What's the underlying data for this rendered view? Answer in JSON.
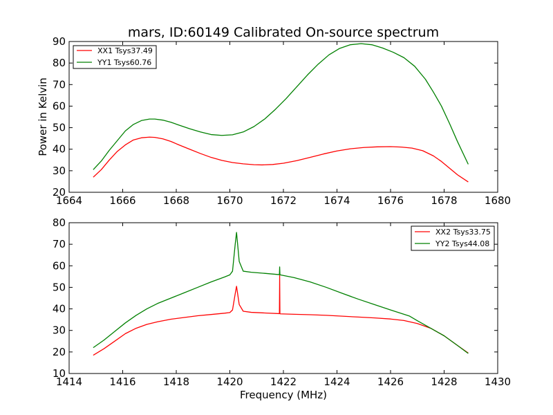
{
  "figure": {
    "title": "mars, ID:60149 Calibrated On-source spectrum"
  },
  "chart_data": [
    {
      "type": "line",
      "title": "mars, ID:60149 Calibrated On-source spectrum",
      "xlabel": "",
      "ylabel": "Power in Kelvin",
      "xlim": [
        1664,
        1680
      ],
      "ylim": [
        20,
        90
      ],
      "xticks": [
        1664,
        1666,
        1668,
        1670,
        1672,
        1674,
        1676,
        1678,
        1680
      ],
      "yticks": [
        20,
        30,
        40,
        50,
        60,
        70,
        80,
        90
      ],
      "xtick_labels": [
        "1664",
        "1666",
        "1668",
        "1670",
        "1672",
        "1674",
        "1676",
        "1678",
        "1680"
      ],
      "ytick_labels": [
        "20",
        "30",
        "40",
        "50",
        "60",
        "70",
        "80",
        "90"
      ],
      "grid": false,
      "legend": "top-left",
      "series": [
        {
          "name": "XX1 Tsys37.49",
          "color": "#ff0000",
          "x": [
            1664.9,
            1665.2,
            1665.5,
            1665.8,
            1666.1,
            1666.4,
            1666.7,
            1667.0,
            1667.2,
            1667.5,
            1667.8,
            1668.1,
            1668.5,
            1668.9,
            1669.3,
            1669.7,
            1670.1,
            1670.5,
            1670.9,
            1671.2,
            1671.6,
            1672.0,
            1672.5,
            1673.0,
            1673.5,
            1674.0,
            1674.5,
            1675.0,
            1675.5,
            1676.0,
            1676.4,
            1676.8,
            1677.2,
            1677.6,
            1677.9,
            1678.2,
            1678.5,
            1678.9
          ],
          "y": [
            27.0,
            30.5,
            35.0,
            39.0,
            42.0,
            44.3,
            45.3,
            45.6,
            45.5,
            44.8,
            43.6,
            42.0,
            40.0,
            38.0,
            36.2,
            34.8,
            33.8,
            33.2,
            32.8,
            32.7,
            32.9,
            33.5,
            34.7,
            36.2,
            37.8,
            39.2,
            40.2,
            40.8,
            41.1,
            41.2,
            41.0,
            40.5,
            39.3,
            36.9,
            34.3,
            31.2,
            28.1,
            24.8
          ]
        },
        {
          "name": "YY1 Tsys60.76",
          "color": "#008000",
          "x": [
            1664.9,
            1665.2,
            1665.5,
            1665.8,
            1666.1,
            1666.4,
            1666.7,
            1667.0,
            1667.2,
            1667.5,
            1667.8,
            1668.1,
            1668.5,
            1668.9,
            1669.3,
            1669.7,
            1670.1,
            1670.5,
            1670.9,
            1671.3,
            1671.7,
            1672.1,
            1672.5,
            1672.9,
            1673.3,
            1673.7,
            1674.1,
            1674.5,
            1674.9,
            1675.3,
            1675.7,
            1676.1,
            1676.5,
            1676.9,
            1677.3,
            1677.6,
            1677.9,
            1678.2,
            1678.5,
            1678.9
          ],
          "y": [
            30.5,
            34.5,
            39.5,
            44.0,
            48.5,
            51.5,
            53.3,
            54.0,
            54.0,
            53.5,
            52.5,
            51.2,
            49.5,
            48.0,
            46.8,
            46.4,
            46.7,
            48.0,
            50.5,
            54.0,
            58.5,
            63.5,
            69.0,
            74.5,
            79.5,
            83.8,
            86.8,
            88.5,
            89.0,
            88.5,
            87.0,
            85.0,
            82.5,
            78.5,
            72.5,
            66.5,
            60.0,
            52.0,
            43.5,
            33.0
          ]
        }
      ]
    },
    {
      "type": "line",
      "title": "",
      "xlabel": "Frequency (MHz)",
      "ylabel": "",
      "xlim": [
        1414,
        1430
      ],
      "ylim": [
        10,
        80
      ],
      "xticks": [
        1414,
        1416,
        1418,
        1420,
        1422,
        1424,
        1426,
        1428,
        1430
      ],
      "yticks": [
        10,
        20,
        30,
        40,
        50,
        60,
        70,
        80
      ],
      "xtick_labels": [
        "1414",
        "1416",
        "1418",
        "1420",
        "1422",
        "1424",
        "1426",
        "1428",
        "1430"
      ],
      "ytick_labels": [
        "10",
        "20",
        "30",
        "40",
        "50",
        "60",
        "70",
        "80"
      ],
      "grid": false,
      "legend": "top-right",
      "series": [
        {
          "name": "XX2 Tsys33.75",
          "color": "#ff0000",
          "x": [
            1414.9,
            1415.3,
            1415.7,
            1416.1,
            1416.5,
            1416.9,
            1417.3,
            1417.8,
            1418.3,
            1418.8,
            1419.3,
            1419.8,
            1420.0,
            1420.1,
            1420.2,
            1420.25,
            1420.35,
            1420.5,
            1420.8,
            1421.3,
            1421.85,
            1421.86,
            1421.87,
            1421.88,
            1422.4,
            1423.0,
            1423.6,
            1424.2,
            1424.8,
            1425.4,
            1426.0,
            1426.5,
            1427.0,
            1427.5,
            1428.0,
            1428.5,
            1428.9
          ],
          "y": [
            18.5,
            21.5,
            25.0,
            28.5,
            31.0,
            32.8,
            34.0,
            35.2,
            36.0,
            36.8,
            37.4,
            38.0,
            38.3,
            39.5,
            47.0,
            50.5,
            42.0,
            38.9,
            38.4,
            38.1,
            37.8,
            55.5,
            37.8,
            37.7,
            37.5,
            37.3,
            37.0,
            36.6,
            36.2,
            35.8,
            35.3,
            34.6,
            33.2,
            31.0,
            27.5,
            23.0,
            19.5
          ]
        },
        {
          "name": "YY2 Tsys44.08",
          "color": "#008000",
          "x": [
            1414.9,
            1415.3,
            1415.7,
            1416.1,
            1416.5,
            1416.9,
            1417.3,
            1417.8,
            1418.3,
            1418.8,
            1419.3,
            1419.8,
            1420.0,
            1420.1,
            1420.2,
            1420.25,
            1420.35,
            1420.5,
            1420.8,
            1421.3,
            1421.85,
            1421.86,
            1421.87,
            1421.88,
            1422.4,
            1423.0,
            1423.6,
            1424.2,
            1424.8,
            1425.4,
            1426.0,
            1426.5,
            1426.7,
            1427.0,
            1427.5,
            1428.0,
            1428.5,
            1428.9
          ],
          "y": [
            22.0,
            25.5,
            29.5,
            33.5,
            37.0,
            40.0,
            42.5,
            45.0,
            47.5,
            50.0,
            52.5,
            54.8,
            55.8,
            57.5,
            70.0,
            75.5,
            62.0,
            57.5,
            57.0,
            56.5,
            55.9,
            59.5,
            56.0,
            55.8,
            54.5,
            52.5,
            50.0,
            47.2,
            44.5,
            42.0,
            39.5,
            37.5,
            36.7,
            34.5,
            31.0,
            27.5,
            23.0,
            19.3
          ]
        }
      ]
    }
  ]
}
